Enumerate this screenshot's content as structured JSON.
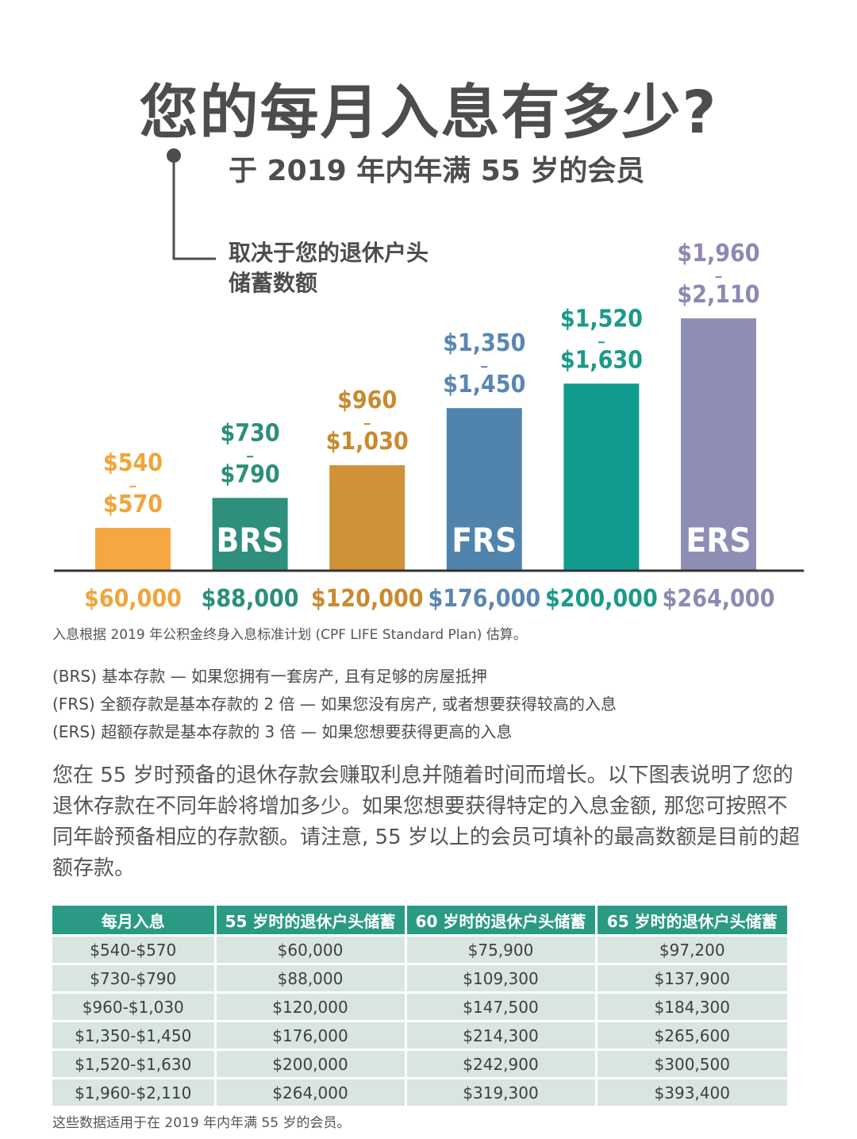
{
  "header": {
    "title": "您的每月入息有多少?",
    "subtitle": "于 2019 年内年满 55 岁的会员",
    "callout_line1": "取决于您的退休户头",
    "callout_line2": "储蓄数额"
  },
  "chart_data": {
    "type": "bar",
    "ylabel": "",
    "xlabel": "",
    "categories": [
      "$60,000",
      "$88,000",
      "$120,000",
      "$176,000",
      "$200,000",
      "$264,000"
    ],
    "series": [
      {
        "values": [
          [
            540,
            570
          ],
          [
            730,
            790
          ],
          [
            960,
            1030
          ],
          [
            1350,
            1450
          ],
          [
            1520,
            1630
          ],
          [
            1960,
            2110
          ]
        ]
      }
    ],
    "bar_labels_top": [
      "$540",
      "$730",
      "$960",
      "$1,350",
      "$1,520",
      "$1,960"
    ],
    "bar_labels_bottom": [
      "$570",
      "$790",
      "$1,030",
      "$1,450",
      "$1,630",
      "$2,110"
    ],
    "bar_tags": [
      "",
      "BRS",
      "",
      "FRS",
      "",
      "ERS"
    ],
    "colors": [
      "#f5a841",
      "#2e8f7c",
      "#cf9237",
      "#5184ad",
      "#0f9c8e",
      "#8e8eb5"
    ],
    "label_colors": [
      "#f0a43a",
      "#2b8f7a",
      "#c98a2e",
      "#5a86b2",
      "#1a9a8a",
      "#8a8ab5"
    ],
    "ylim": [
      0,
      2200
    ]
  },
  "chart_footnote": "入息根据 2019 年公积金终身入息标准计划 (CPF LIFE Standard Plan) 估算。",
  "definitions": [
    "(BRS) 基本存款 — 如果您拥有一套房产, 且有足够的房屋抵押",
    "(FRS) 全额存款是基本存款的 2 倍 — 如果您没有房产, 或者想要获得较高的入息",
    "(ERS) 超额存款是基本存款的 3 倍 — 如果您想要获得更高的入息"
  ],
  "paragraph": "您在 55 岁时预备的退休存款会赚取利息并随着时间而增长。以下图表说明了您的退休存款在不同年龄将增加多少。如果您想要获得特定的入息金额, 那您可按照不同年龄预备相应的存款额。请注意, 55 岁以上的会员可填补的最高数额是目前的超额存款。",
  "table": {
    "headers": [
      "每月入息",
      "55 岁时的退休户头储蓄",
      "60 岁时的退休户头储蓄",
      "65 岁时的退休户头储蓄"
    ],
    "rows": [
      [
        "$540-$570",
        "$60,000",
        "$75,900",
        "$97,200"
      ],
      [
        "$730-$790",
        "$88,000",
        "$109,300",
        "$137,900"
      ],
      [
        "$960-$1,030",
        "$120,000",
        "$147,500",
        "$184,300"
      ],
      [
        "$1,350-$1,450",
        "$176,000",
        "$214,300",
        "$265,600"
      ],
      [
        "$1,520-$1,630",
        "$200,000",
        "$242,900",
        "$300,500"
      ],
      [
        "$1,960-$2,110",
        "$264,000",
        "$319,300",
        "$393,400"
      ]
    ]
  },
  "table_footnote": "这些数据适用于在 2019 年内年满 55 岁的会员。"
}
